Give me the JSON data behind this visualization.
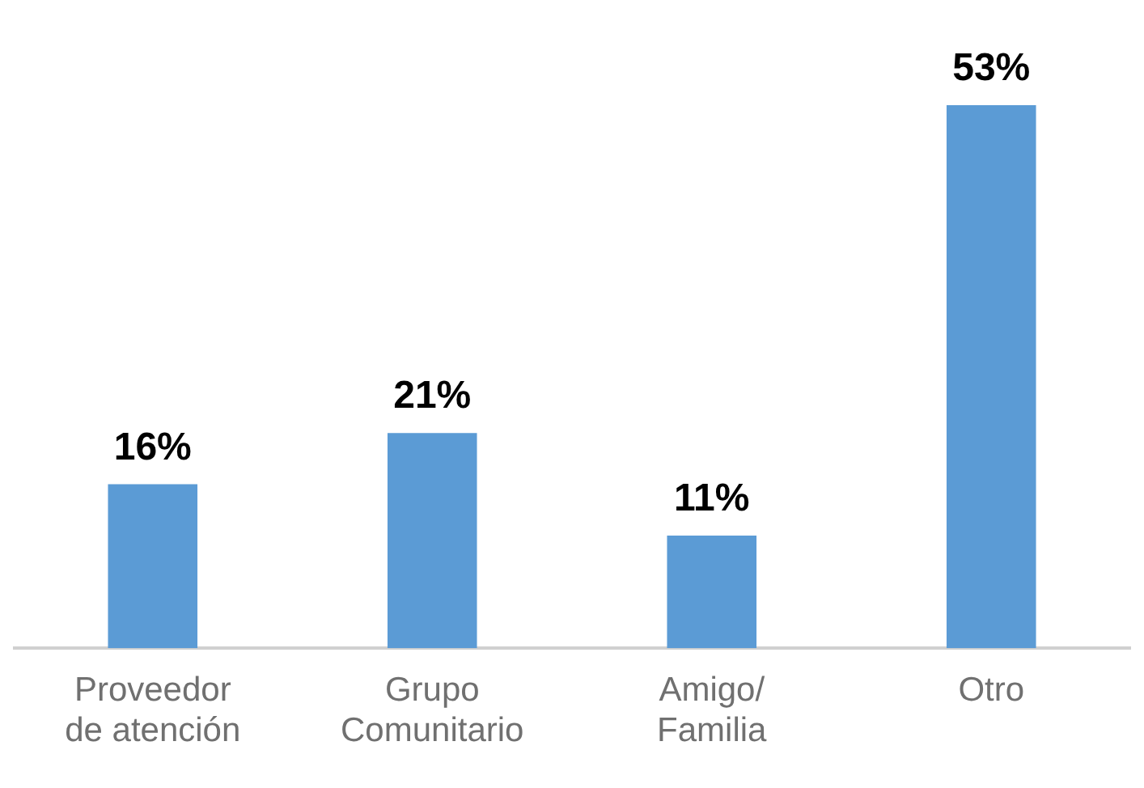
{
  "chart_data": {
    "type": "bar",
    "categories": [
      "Proveedor de atención",
      "Grupo Comunitario",
      "Amigo/ Familia",
      "Otro"
    ],
    "values": [
      16,
      21,
      11,
      53
    ],
    "value_labels": [
      "16%",
      "21%",
      "11%",
      "53%"
    ],
    "color": "#5b9bd5",
    "grid": false,
    "legend": false
  }
}
